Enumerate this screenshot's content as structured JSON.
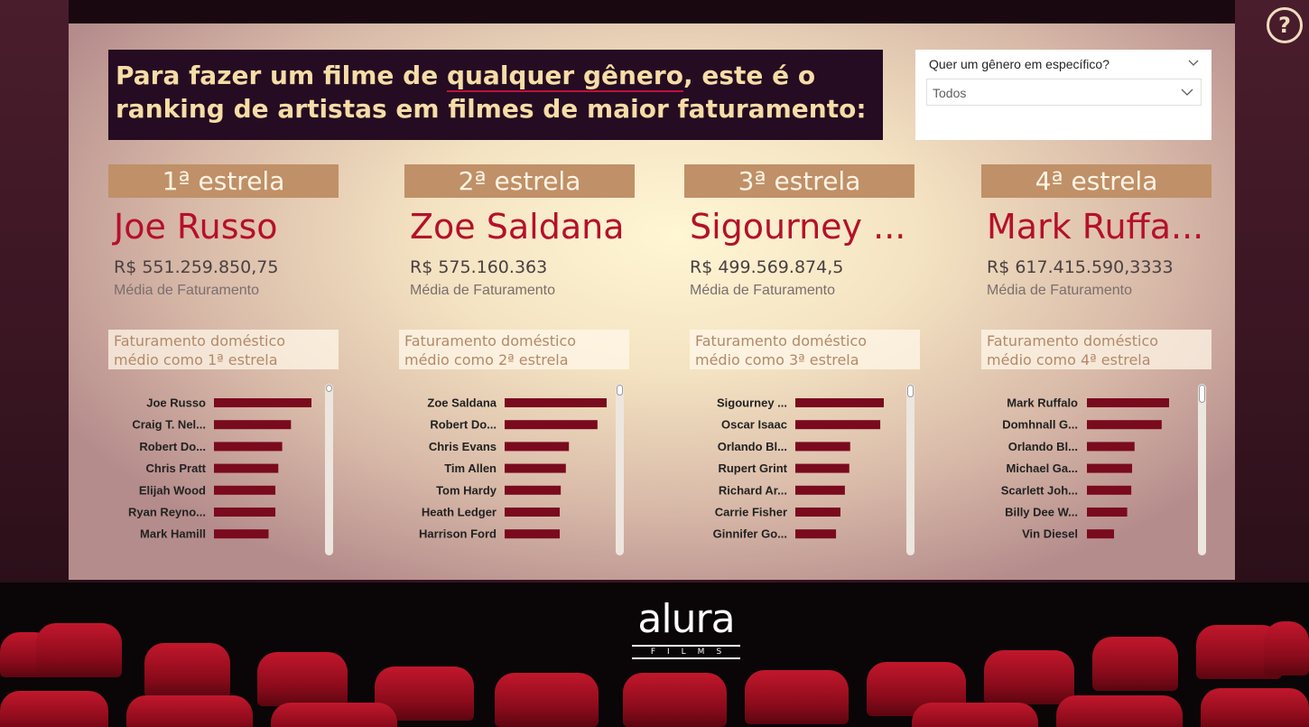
{
  "headline": {
    "part1": "Para fazer um filme de ",
    "emphasis": "qualquer gênero",
    "part2": ", este é o ranking de artistas em filmes de maior faturamento:"
  },
  "slicer": {
    "title": "Quer um gênero em específico?",
    "value": "Todos"
  },
  "help_icon": "question-circle-icon",
  "logo": {
    "word": "alura",
    "sub": "FILMS"
  },
  "colors": {
    "accent_red": "#b5102a",
    "bar_red": "#7a0a1e",
    "band_tan": "#c09068",
    "headline_bg": "#250c22"
  },
  "cards": [
    {
      "rank": "1ª estrela",
      "name": "Joe Russo",
      "value": "R$ 551.259.850,75",
      "sub": "Média de Faturamento",
      "chart_title": "Faturamento doméstico médio como 1ª estrela"
    },
    {
      "rank": "2ª estrela",
      "name": "Zoe Saldana",
      "value": "R$ 575.160.363",
      "sub": "Média de Faturamento",
      "chart_title": "Faturamento doméstico médio como 2ª estrela"
    },
    {
      "rank": "3ª estrela",
      "name": "Sigourney ...",
      "value": "R$ 499.569.874,5",
      "sub": "Média de Faturamento",
      "chart_title": "Faturamento doméstico médio como 3ª estrela"
    },
    {
      "rank": "4ª estrela",
      "name": "Mark Ruffa...",
      "value": "R$ 617.415.590,3333",
      "sub": "Média de Faturamento",
      "chart_title": "Faturamento doméstico médio como 4ª estrela"
    }
  ],
  "chart_data": [
    {
      "type": "bar",
      "orientation": "horizontal",
      "categories": [
        "Joe Russo",
        "Craig T. Nel...",
        "Robert Do...",
        "Chris Pratt",
        "Elijah Wood",
        "Ryan Reyno...",
        "Mark Hamill"
      ],
      "values": [
        1.0,
        0.79,
        0.7,
        0.66,
        0.63,
        0.63,
        0.56
      ]
    },
    {
      "type": "bar",
      "orientation": "horizontal",
      "categories": [
        "Zoe Saldana",
        "Robert Do...",
        "Chris Evans",
        "Tim Allen",
        "Tom Hardy",
        "Heath Ledger",
        "Harrison Ford"
      ],
      "values": [
        1.0,
        0.91,
        0.63,
        0.6,
        0.55,
        0.54,
        0.54
      ]
    },
    {
      "type": "bar",
      "orientation": "horizontal",
      "categories": [
        "Sigourney ...",
        "Oscar Isaac",
        "Orlando Bl...",
        "Rupert Grint",
        "Richard Ar...",
        "Carrie Fisher",
        "Ginnifer Go..."
      ],
      "values": [
        1.0,
        0.96,
        0.62,
        0.61,
        0.56,
        0.51,
        0.46
      ]
    },
    {
      "type": "bar",
      "orientation": "horizontal",
      "categories": [
        "Mark Ruffalo",
        "Domhnall G...",
        "Orlando Bl...",
        "Michael Ga...",
        "Scarlett Joh...",
        "Billy Dee W...",
        "Vin Diesel"
      ],
      "values": [
        1.0,
        0.91,
        0.58,
        0.55,
        0.54,
        0.49,
        0.33
      ]
    }
  ]
}
